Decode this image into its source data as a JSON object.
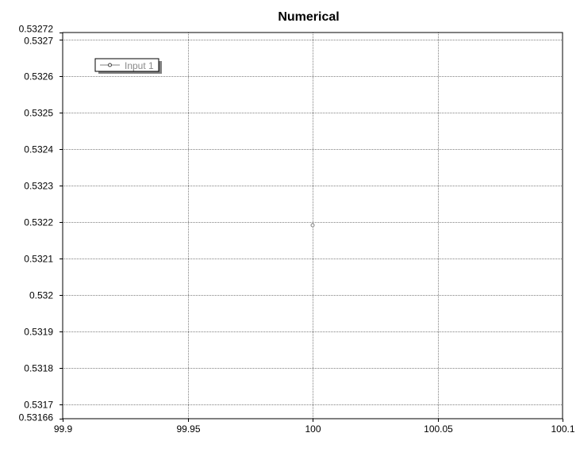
{
  "chart_data": {
    "type": "scatter",
    "title": "Numerical",
    "xlabel": "",
    "ylabel": "",
    "xlim": [
      99.9,
      100.1
    ],
    "ylim": [
      0.53166,
      0.53272
    ],
    "x_ticks": [
      "99.9",
      "99.95",
      "100",
      "100.05",
      "100.1"
    ],
    "x_tick_values": [
      99.9,
      99.95,
      100,
      100.05,
      100.1
    ],
    "y_ticks": [
      "0.53272",
      "0.5327",
      "0.5326",
      "0.5325",
      "0.5324",
      "0.5323",
      "0.5322",
      "0.5321",
      "0.532",
      "0.5319",
      "0.5318",
      "0.5317",
      "0.53166"
    ],
    "y_tick_values": [
      0.53272,
      0.5327,
      0.5326,
      0.5325,
      0.5324,
      0.5323,
      0.5322,
      0.5321,
      0.532,
      0.5319,
      0.5318,
      0.5317,
      0.53166
    ],
    "grid": true,
    "legend_position": "top-left",
    "series": [
      {
        "name": "Input 1",
        "x": [
          100
        ],
        "y": [
          0.532191
        ],
        "color": "#808080"
      }
    ]
  }
}
